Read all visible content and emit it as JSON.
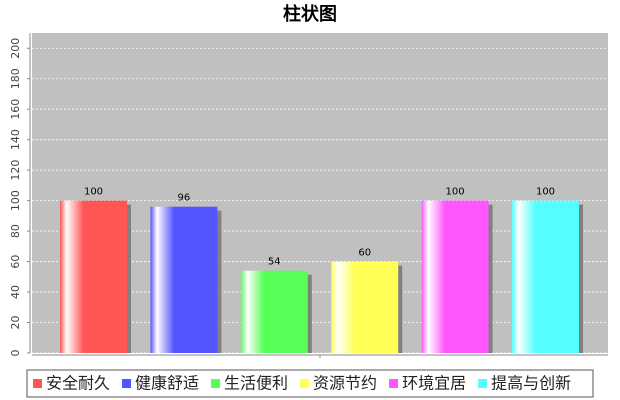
{
  "chart_data": {
    "type": "bar",
    "title": "柱状图",
    "categories": [
      null
    ],
    "series": [
      {
        "name": "安全耐久",
        "color": "#ff5555",
        "values": [
          100
        ]
      },
      {
        "name": "健康舒适",
        "color": "#5555ff",
        "values": [
          96
        ]
      },
      {
        "name": "生活便利",
        "color": "#55ff55",
        "values": [
          54
        ]
      },
      {
        "name": "资源节约",
        "color": "#ffff55",
        "values": [
          60
        ]
      },
      {
        "name": "环境宜居",
        "color": "#ff55ff",
        "values": [
          100
        ]
      },
      {
        "name": "提高与创新",
        "color": "#55ffff",
        "values": [
          100
        ]
      }
    ],
    "ylim": [
      0,
      210
    ],
    "yticks": [
      0,
      20,
      40,
      60,
      80,
      100,
      120,
      140,
      160,
      180,
      200
    ],
    "grid": true
  }
}
